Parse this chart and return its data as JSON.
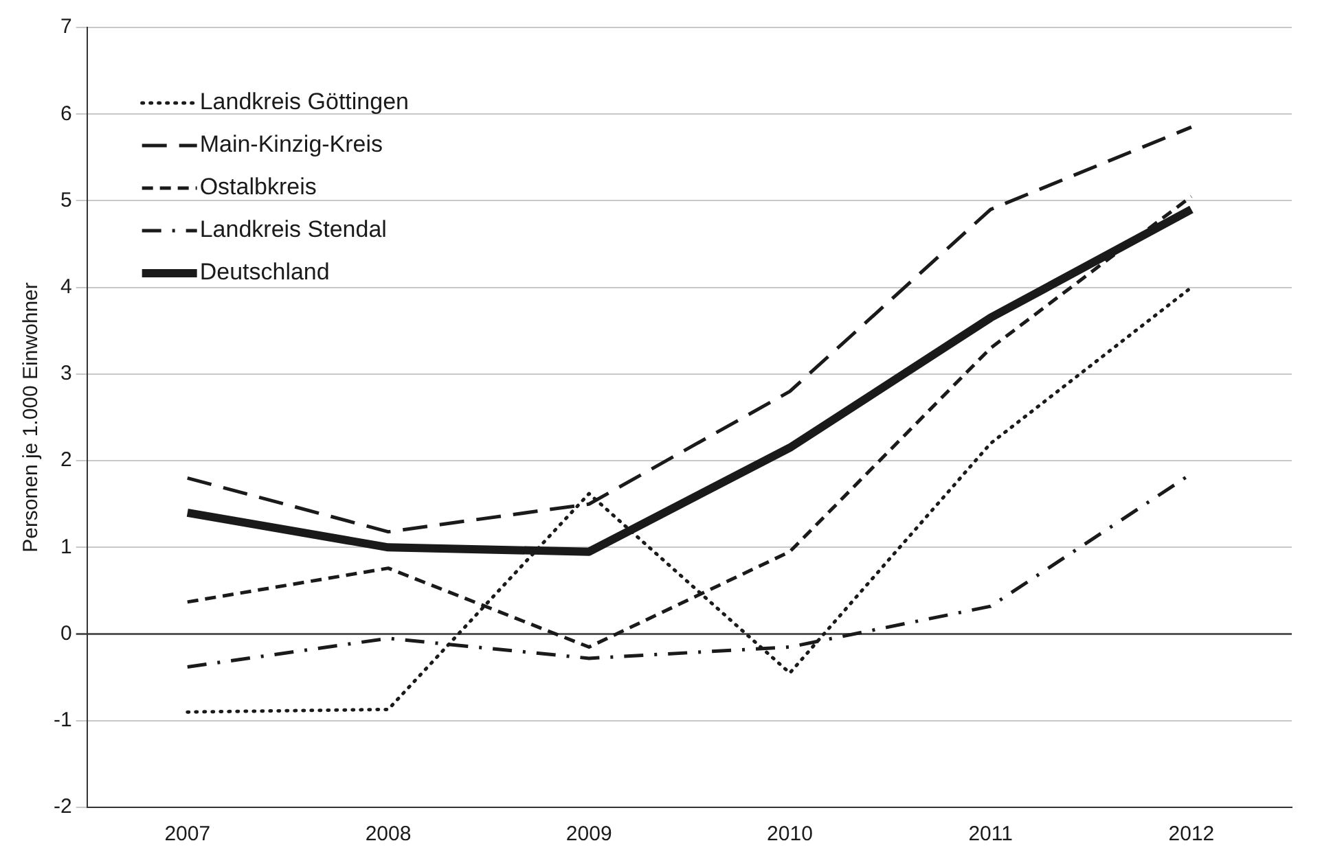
{
  "chart_data": {
    "type": "line",
    "ylabel": "Personen je 1.000 Einwohner",
    "categories": [
      "2007",
      "2008",
      "2009",
      "2010",
      "2011",
      "2012"
    ],
    "series": [
      {
        "name": "Landkreis Göttingen",
        "color": "#1a1a1a",
        "line_style": "dotted",
        "values": [
          -0.9,
          -0.87,
          1.62,
          -0.45,
          2.2,
          4.0
        ]
      },
      {
        "name": "Main-Kinzig-Kreis",
        "color": "#1a1a1a",
        "line_style": "dashed",
        "values": [
          1.8,
          1.18,
          1.5,
          2.8,
          4.9,
          5.85
        ]
      },
      {
        "name": "Ostalbkreis",
        "color": "#1a1a1a",
        "line_style": "dashed",
        "values": [
          0.37,
          0.76,
          -0.15,
          0.95,
          3.3,
          5.05
        ]
      },
      {
        "name": "Landkreis Stendal",
        "color": "#1a1a1a",
        "line_style": "dashed",
        "values": [
          -0.38,
          -0.05,
          -0.28,
          -0.15,
          0.32,
          1.85
        ]
      },
      {
        "name": "Deutschland",
        "color": "#1a1a1a",
        "line_style": "solid",
        "values": [
          1.4,
          1.0,
          0.95,
          2.15,
          3.65,
          4.9
        ]
      }
    ],
    "ylim": [
      -2,
      7
    ],
    "yticks": [
      -2,
      -1,
      0,
      1,
      2,
      3,
      4,
      5,
      6,
      7
    ],
    "grid": "y",
    "legend": "top left",
    "marker": "none"
  }
}
